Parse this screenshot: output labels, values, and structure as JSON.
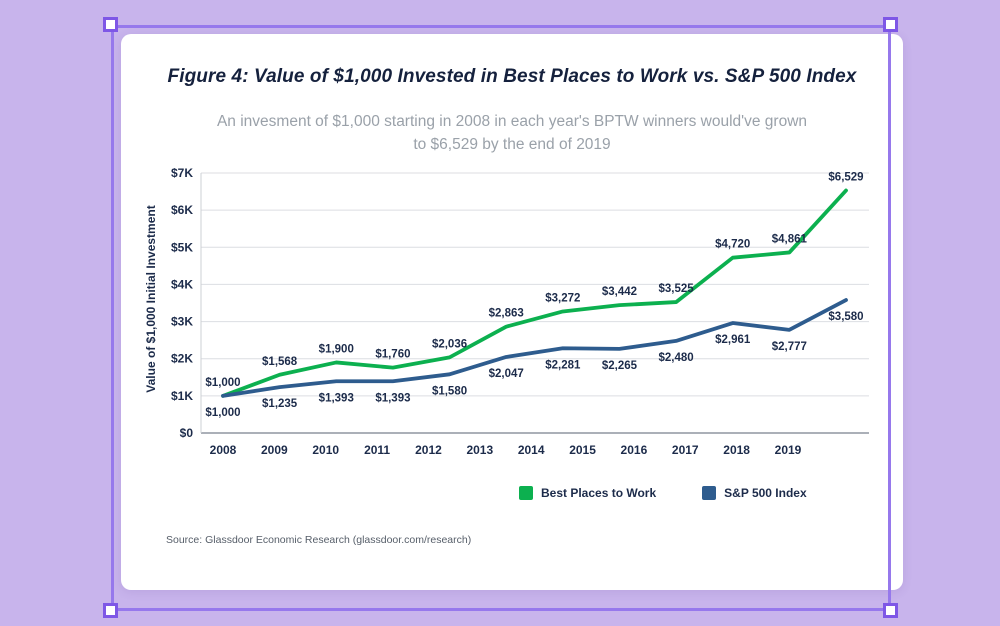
{
  "figure": {
    "title": "Figure 4: Value of $1,000 Invested in Best Places to Work vs. S&P 500 Index",
    "subtitle_line1": "An invesment of $1,000 starting in 2008 in each year's BPTW winners would've grown",
    "subtitle_line2": "to $6,529 by the end of 2019",
    "source": "Source: Glassdoor Economic Research (glassdoor.com/research)"
  },
  "chart_data": {
    "type": "line",
    "title": "Figure 4: Value of $1,000 Invested in Best Places to Work vs. S&P 500 Index",
    "categories": [
      "2008",
      "2009",
      "2010",
      "2011",
      "2012",
      "2013",
      "2014",
      "2015",
      "2016",
      "2017",
      "2018",
      "2019"
    ],
    "series": [
      {
        "name": "Best Places to Work",
        "color": "#0cb04f",
        "label_position": "above",
        "values": [
          1000,
          1568,
          1900,
          1760,
          2036,
          2863,
          3272,
          3442,
          3525,
          4720,
          4861,
          6529
        ]
      },
      {
        "name": "S&P 500 Index",
        "color": "#2e5c8e",
        "label_position": "below",
        "values": [
          1000,
          1235,
          1393,
          1393,
          1580,
          2047,
          2281,
          2265,
          2480,
          2961,
          2777,
          3580
        ]
      }
    ],
    "xlabel": "",
    "ylabel": "Value of $1,000 Initial Investment",
    "y_ticks": [
      "$0",
      "$1K",
      "$2K",
      "$3K",
      "$4K",
      "$5K",
      "$6K",
      "$7K"
    ],
    "ylim": [
      0,
      7000
    ],
    "grid": true,
    "legend_position": "bottom"
  }
}
